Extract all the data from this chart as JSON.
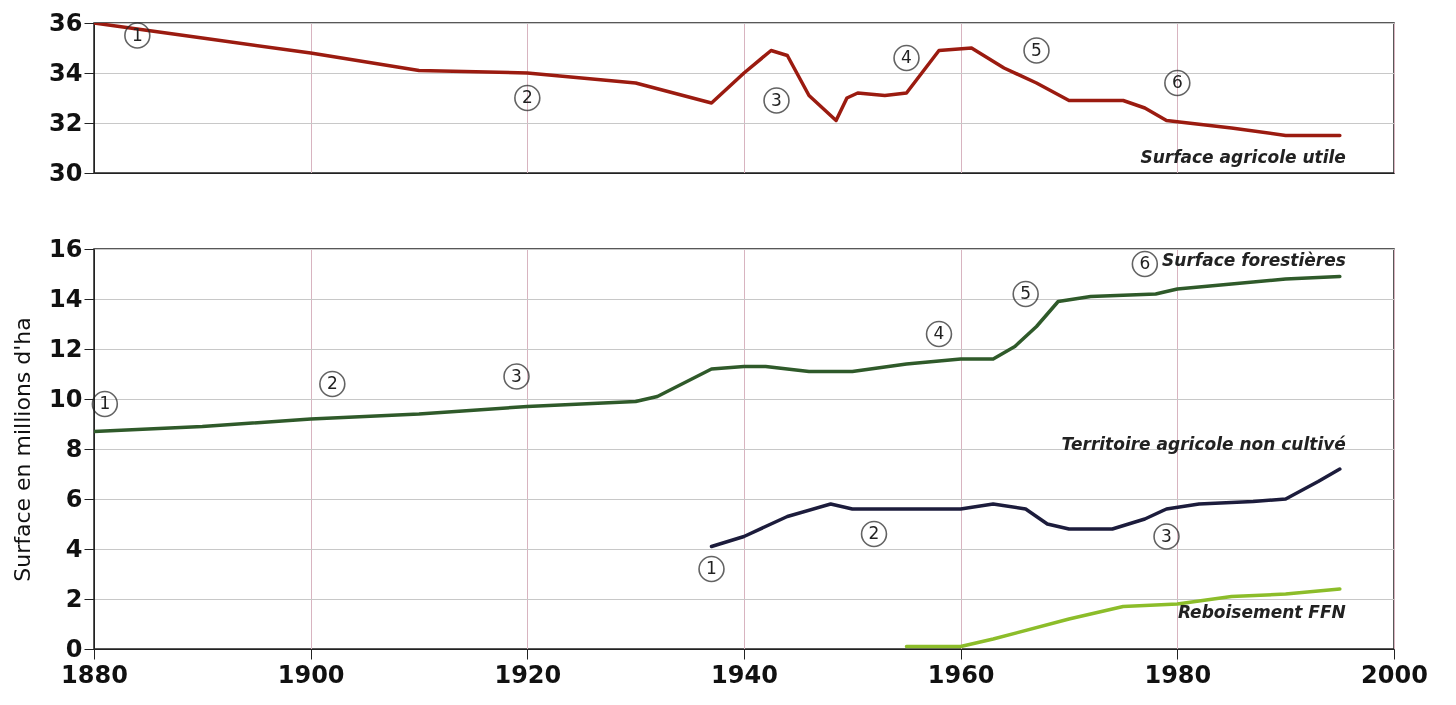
{
  "chart_data": [
    {
      "type": "line",
      "xlim": [
        1880,
        2000
      ],
      "xticks": [
        1880,
        1900,
        1920,
        1940,
        1960,
        1980,
        2000
      ],
      "ylim": [
        30,
        36
      ],
      "yticks": [
        30,
        32,
        34,
        36
      ],
      "grid": true,
      "tick_labels": "y",
      "series": [
        {
          "name": "Surface agricole utile",
          "color": "#9b1b10",
          "x": [
            1880,
            1885,
            1890,
            1900,
            1910,
            1920,
            1930,
            1937,
            1940,
            1942.5,
            1944,
            1946,
            1948.5,
            1949.5,
            1950.5,
            1953,
            1955,
            1958,
            1961,
            1964,
            1967,
            1970,
            1975,
            1977,
            1979,
            1985,
            1990,
            1995
          ],
          "values": [
            36,
            35.7,
            35.4,
            34.8,
            34.1,
            34.0,
            33.6,
            32.8,
            34.0,
            34.9,
            34.7,
            33.1,
            32.1,
            33.0,
            33.2,
            33.1,
            33.2,
            34.9,
            35.0,
            34.2,
            33.6,
            32.9,
            32.9,
            32.6,
            32.1,
            31.8,
            31.5,
            31.5
          ]
        }
      ],
      "annotations": [
        {
          "text": "1",
          "x": 1884,
          "y": 35.5
        },
        {
          "text": "2",
          "x": 1920,
          "y": 33
        },
        {
          "text": "3",
          "x": 1943,
          "y": 32.9
        },
        {
          "text": "4",
          "x": 1955,
          "y": 34.6
        },
        {
          "text": "5",
          "x": 1967,
          "y": 34.9
        },
        {
          "text": "6",
          "x": 1980,
          "y": 33.6
        }
      ]
    },
    {
      "type": "line",
      "xlim": [
        1880,
        2000
      ],
      "xticks": [
        1880,
        1900,
        1920,
        1940,
        1960,
        1980,
        2000
      ],
      "ylim": [
        0,
        16
      ],
      "yticks": [
        0,
        2,
        4,
        6,
        8,
        10,
        12,
        14,
        16
      ],
      "grid": true,
      "ylabel": "Surface en millions d'ha",
      "series": [
        {
          "name": "Surface forestières",
          "color": "#2f5a2a",
          "x": [
            1880,
            1890,
            1900,
            1910,
            1920,
            1930,
            1932,
            1937,
            1940,
            1942,
            1946,
            1950,
            1955,
            1960,
            1963,
            1965,
            1967,
            1969,
            1972,
            1978,
            1980,
            1985,
            1990,
            1995
          ],
          "values": [
            8.7,
            8.9,
            9.2,
            9.4,
            9.7,
            9.9,
            10.1,
            11.2,
            11.3,
            11.3,
            11.1,
            11.1,
            11.4,
            11.6,
            11.6,
            12.1,
            12.9,
            13.9,
            14.1,
            14.2,
            14.4,
            14.6,
            14.8,
            14.9
          ]
        },
        {
          "name": "Territoire agricole non cultivé",
          "color": "#1c1c3c",
          "x": [
            1937,
            1940,
            1944,
            1948,
            1950,
            1955,
            1960,
            1963,
            1966,
            1968,
            1970,
            1974,
            1977,
            1979,
            1982,
            1987,
            1990,
            1993,
            1995
          ],
          "values": [
            4.1,
            4.5,
            5.3,
            5.8,
            5.6,
            5.6,
            5.6,
            5.8,
            5.6,
            5.0,
            4.8,
            4.8,
            5.2,
            5.6,
            5.8,
            5.9,
            6.0,
            6.7,
            7.2
          ]
        },
        {
          "name": "Reboisement FFN",
          "color": "#8cbd2a",
          "x": [
            1955,
            1960,
            1963,
            1970,
            1975,
            1980,
            1985,
            1990,
            1995
          ],
          "values": [
            0.1,
            0.1,
            0.4,
            1.2,
            1.7,
            1.8,
            2.1,
            2.2,
            2.4
          ]
        }
      ],
      "annotations": [
        {
          "text": "1",
          "x": 1881,
          "y": 9.8
        },
        {
          "text": "2",
          "x": 1902,
          "y": 10.6
        },
        {
          "text": "3",
          "x": 1919,
          "y": 10.9
        },
        {
          "text": "4",
          "x": 1958,
          "y": 12.6
        },
        {
          "text": "5",
          "x": 1966,
          "y": 14.2
        },
        {
          "text": "6",
          "x": 1977,
          "y": 15.4
        },
        {
          "text": "1",
          "x": 1937,
          "y": 3.2
        },
        {
          "text": "2",
          "x": 1952,
          "y": 4.6
        },
        {
          "text": "3",
          "x": 1979,
          "y": 4.5
        }
      ]
    }
  ]
}
